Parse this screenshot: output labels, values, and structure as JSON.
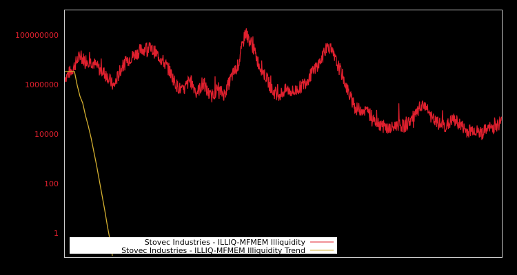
{
  "chart_data": {
    "type": "line",
    "title": "",
    "xlabel": "",
    "ylabel": "",
    "yscale": "log",
    "ylim": [
      0.15,
      5000000000
    ],
    "yticks": [
      {
        "label": "100000000",
        "value": 100000000
      },
      {
        "label": "1000000",
        "value": 1000000
      },
      {
        "label": "10000",
        "value": 10000
      },
      {
        "label": "100",
        "value": 100
      },
      {
        "label": "1",
        "value": 1
      }
    ],
    "grid": false,
    "legend_position": "lower-left",
    "colors": {
      "background": "#000000",
      "frame": "#cccccc",
      "tick_text": "#e0202e",
      "series_main": "#e0202e",
      "series_trend": "#d4b030",
      "legend_bg": "#ffffff"
    },
    "x_points": 64,
    "series": [
      {
        "name": "Stovec Industries - ILLIQ-MFMEM Illiquidity",
        "color": "#e0202e",
        "log10_values": [
          6.3,
          6.6,
          7.1,
          7.0,
          6.9,
          6.6,
          6.4,
          5.9,
          6.6,
          7.0,
          7.2,
          7.4,
          7.5,
          7.3,
          7.0,
          6.6,
          6.0,
          5.7,
          6.2,
          5.7,
          6.0,
          5.5,
          5.8,
          5.6,
          6.3,
          6.8,
          8.1,
          7.6,
          6.8,
          6.3,
          5.7,
          5.6,
          5.8,
          5.7,
          5.9,
          6.2,
          6.6,
          7.0,
          7.6,
          7.0,
          6.4,
          5.6,
          5.0,
          5.0,
          4.8,
          4.5,
          4.3,
          4.2,
          4.4,
          4.3,
          4.6,
          4.9,
          5.2,
          4.6,
          4.4,
          4.3,
          4.6,
          4.4,
          4.1,
          4.2,
          4.0,
          4.2,
          4.3,
          4.5
        ],
        "min_log10": 3.8,
        "max_log10": 8.6
      },
      {
        "name": "Stovec Industries - ILLIQ-MFMEM Illiquidity Trend",
        "color": "#d4b030",
        "log10_values": [
          6.5,
          6.5,
          6.5,
          6.0,
          5.0,
          3.8,
          2.6,
          1.4,
          0.2,
          -0.9
        ],
        "note": "flat at ~3e6 then steep linear decline in log space, exits bottom near x=165px"
      }
    ],
    "legend": [
      {
        "label": "Stovec Industries - ILLIQ-MFMEM Illiquidity",
        "color": "#e0202e"
      },
      {
        "label": "Stovec Industries - ILLIQ-MFMEM Illiquidity Trend",
        "color": "#d4b030"
      }
    ]
  }
}
